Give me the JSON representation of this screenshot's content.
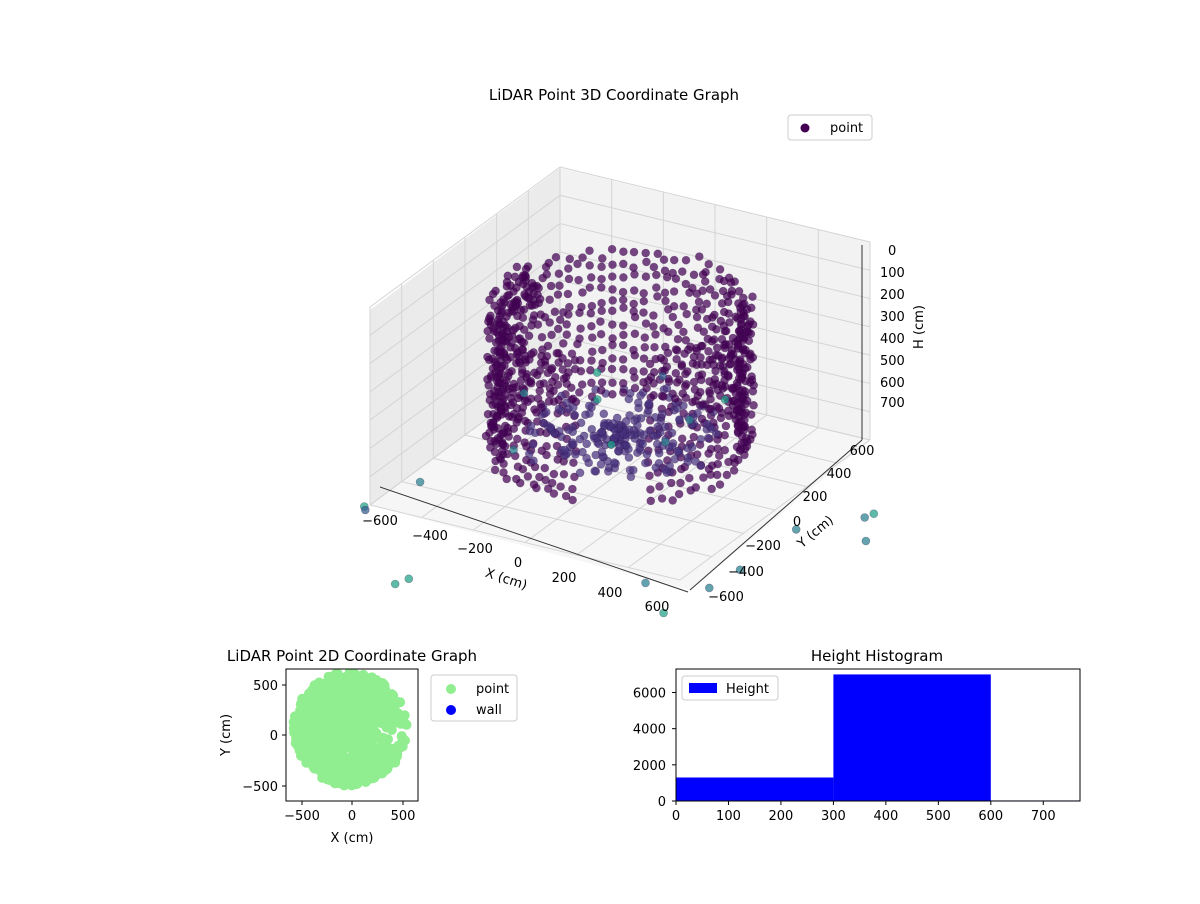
{
  "chart_data": [
    {
      "type": "scatter",
      "title": "LiDAR Point 3D Coordinate Graph",
      "xlabel": "X (cm)",
      "ylabel": "Y (cm)",
      "zlabel": "H (cm)",
      "xlim": [
        -650,
        650
      ],
      "ylim": [
        -650,
        650
      ],
      "zlim": [
        770,
        0
      ],
      "x_ticks": [
        "−600",
        "−400",
        "−200",
        "0",
        "200",
        "400",
        "600"
      ],
      "y_ticks": [
        "−600",
        "−400",
        "−200",
        "0",
        "200",
        "400",
        "600"
      ],
      "z_ticks": [
        "0",
        "100",
        "200",
        "300",
        "400",
        "500",
        "600",
        "700"
      ],
      "series": [
        {
          "name": "point",
          "color": "#440154",
          "colormap": "viridis"
        }
      ],
      "legend": "top-right",
      "grid": true
    },
    {
      "type": "scatter",
      "title": "LiDAR Point 2D Coordinate Graph",
      "xlabel": "X (cm)",
      "ylabel": "Y (cm)",
      "xlim": [
        -650,
        650
      ],
      "ylim": [
        -650,
        650
      ],
      "x_ticks": [
        "−500",
        "0",
        "500"
      ],
      "y_ticks": [
        "500",
        "0",
        "−500"
      ],
      "series": [
        {
          "name": "point",
          "color": "#90ee90"
        },
        {
          "name": "wall",
          "color": "#0000ff"
        }
      ],
      "legend": "outside-right"
    },
    {
      "type": "bar",
      "title": "Height Histogram",
      "bins": [
        [
          0,
          300
        ],
        [
          300,
          600
        ],
        [
          600,
          770
        ]
      ],
      "values": [
        1300,
        7000,
        30
      ],
      "xlim": [
        0,
        770
      ],
      "ylim": [
        0,
        7300
      ],
      "x_ticks": [
        "0",
        "100",
        "200",
        "300",
        "400",
        "500",
        "600",
        "700"
      ],
      "y_ticks": [
        "0",
        "2000",
        "4000",
        "6000"
      ],
      "series": [
        {
          "name": "Height",
          "color": "#0000ff"
        }
      ],
      "legend": "top-left"
    }
  ]
}
